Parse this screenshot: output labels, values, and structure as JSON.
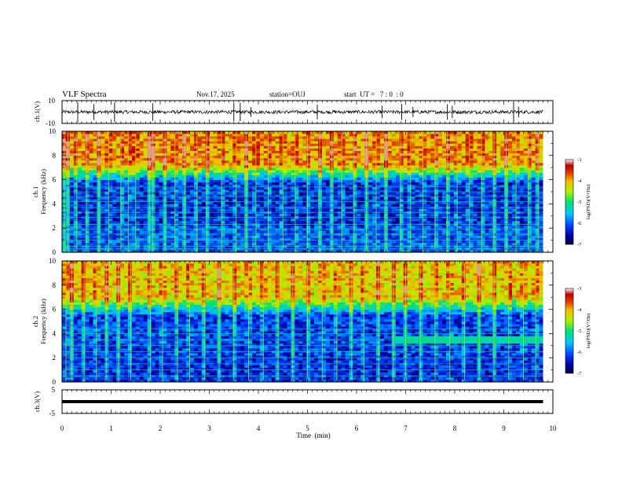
{
  "header": {
    "title": "VLF Spectra",
    "date": "Nov.17, 2025",
    "station": "station=OUJ",
    "start_ut": "start  UT =   7 : 0  : 0"
  },
  "colors": {
    "background": "#ffffff",
    "axis": "#000000",
    "colormap": [
      "#000040",
      "#0000a0",
      "#0040ff",
      "#00c8ff",
      "#00e070",
      "#b0f000",
      "#f0c000",
      "#e04000",
      "#c00000",
      "#ffffff"
    ]
  },
  "chart_data": [
    {
      "type": "line",
      "name": "ch1-waveform",
      "ylabel": "ch.1(V)",
      "ylim": [
        -10,
        10
      ],
      "yticks": [
        "10",
        "-10"
      ],
      "xlim": [
        0,
        10
      ],
      "baseline": 0,
      "noise_amplitude": 1.5,
      "spike_times_min": [
        0.32,
        0.65,
        1.07,
        1.85,
        3.5,
        3.63,
        3.85,
        5.2,
        6.52,
        6.92,
        7.15,
        7.85,
        7.95,
        9.2,
        9.3
      ]
    },
    {
      "type": "heatmap",
      "name": "ch1-spectrogram",
      "ylabel_channel": "ch.1",
      "ylabel": "Frequency (kHz)",
      "ylim": [
        0,
        10
      ],
      "yticks": [
        "0",
        "2",
        "4",
        "6",
        "8",
        "10"
      ],
      "xlim": [
        0,
        9.8
      ],
      "colorbar": {
        "label": "log(PSD)(V²/Hz)",
        "range": [
          -7,
          -3
        ],
        "ticks": [
          "-3",
          "-4",
          "-5",
          "-6",
          "-7"
        ]
      },
      "high_band_kHz": [
        5.8,
        10
      ],
      "high_band_level": -4.0,
      "mid_band_level": -6.3,
      "low_band_level": -6.1,
      "horizontal_lines_kHz": [
        0.3,
        0.5,
        1.0,
        1.5,
        1.9,
        2.3,
        2.9,
        3.3,
        3.7,
        4.2,
        4.6,
        5.0,
        5.4
      ],
      "vertical_streak_times_min": [
        0.05,
        0.12,
        0.3,
        0.5,
        0.75,
        0.95,
        1.2,
        1.35,
        1.5,
        1.78,
        1.85,
        2.1,
        2.3,
        2.5,
        2.75,
        2.95,
        3.25,
        3.55,
        3.75,
        3.95,
        4.2,
        4.5,
        4.75,
        5.0,
        5.25,
        5.5,
        5.7,
        5.95,
        6.2,
        6.4,
        6.6,
        6.9,
        7.1,
        7.35,
        7.6,
        7.85,
        8.05,
        8.3,
        8.55,
        8.8,
        9.05,
        9.25,
        9.5,
        9.7
      ]
    },
    {
      "type": "heatmap",
      "name": "ch2-spectrogram",
      "ylabel_channel": "ch.2",
      "ylabel": "Frequency (kHz)",
      "ylim": [
        0,
        10
      ],
      "yticks": [
        "0",
        "2",
        "4",
        "6",
        "8",
        "10"
      ],
      "xlim": [
        0,
        9.8
      ],
      "colorbar": {
        "label": "log(PSD)(V²/Hz)",
        "range": [
          -7,
          -3
        ],
        "ticks": [
          "-3",
          "-4",
          "-5",
          "-6",
          "-7"
        ]
      },
      "high_band_kHz": [
        5.5,
        10
      ],
      "high_band_level": -4.2,
      "mid_band_level": -6.2,
      "low_band_level": -6.3,
      "enhanced_band": {
        "t_start_min": 6.8,
        "f_range_kHz": [
          3.3,
          3.8
        ],
        "level": -5.2
      },
      "horizontal_lines_kHz": [
        0.5,
        1.0,
        1.5,
        2.0,
        2.5,
        3.0,
        3.5,
        4.0,
        4.4
      ],
      "vertical_streak_times_min": [
        0.08,
        0.2,
        0.45,
        0.7,
        0.9,
        1.15,
        1.4,
        1.8,
        2.05,
        2.35,
        2.6,
        2.9,
        3.2,
        3.5,
        3.8,
        4.1,
        4.4,
        4.7,
        5.0,
        5.3,
        5.6,
        5.9,
        6.15,
        6.45,
        6.75,
        7.0,
        7.3,
        7.6,
        7.9,
        8.2,
        8.5,
        8.8,
        9.1,
        9.4,
        9.65
      ]
    },
    {
      "type": "line",
      "name": "ch3-waveform",
      "ylabel": "ch.3(V)",
      "ylim": [
        -5,
        5
      ],
      "yticks": [
        "5",
        "-5"
      ],
      "xlim": [
        0,
        9.8
      ],
      "baseline": 0
    }
  ],
  "x_axis": {
    "label": "Time  (min)",
    "ticks": [
      "0",
      "1",
      "2",
      "3",
      "4",
      "5",
      "6",
      "7",
      "8",
      "9",
      "10"
    ],
    "range": [
      0,
      10
    ]
  }
}
